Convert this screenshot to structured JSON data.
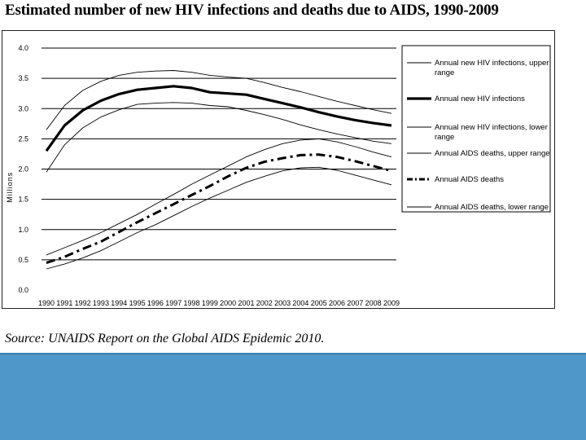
{
  "page": {
    "title": "Estimated number of new HIV infections and deaths due to AIDS, 1990-2009",
    "source": "Source: UNAIDS Report on the Global AIDS Epidemic 2010."
  },
  "chart_data": {
    "type": "line",
    "title": "Estimated number of new HIV infections and deaths due to AIDS, 1990-2009",
    "xlabel": "",
    "ylabel": "Millions",
    "ylim": [
      0,
      4.0
    ],
    "yticks": [
      "0.0",
      "0.5",
      "1.0",
      "1.5",
      "2.0",
      "2.5",
      "3.0",
      "3.5",
      "4.0"
    ],
    "grid": "horizontal",
    "legend_position": "right",
    "categories": [
      "1990",
      "1991",
      "1992",
      "1993",
      "1994",
      "1995",
      "1996",
      "1997",
      "1998",
      "1999",
      "2000",
      "2001",
      "2002",
      "2003",
      "2004",
      "2005",
      "2006",
      "2007",
      "2008",
      "2009"
    ],
    "series": [
      {
        "name": "Annual new HIV infections, upper range",
        "style": "thin",
        "legend_lines": [
          "Annual new HIV infections, upper",
          "range"
        ],
        "values": [
          2.65,
          3.05,
          3.3,
          3.45,
          3.55,
          3.6,
          3.62,
          3.63,
          3.6,
          3.55,
          3.52,
          3.5,
          3.43,
          3.35,
          3.28,
          3.2,
          3.12,
          3.05,
          2.98,
          2.92
        ]
      },
      {
        "name": "Annual new HIV infections",
        "style": "thick",
        "legend_lines": [
          "Annual new HIV infections"
        ],
        "values": [
          2.3,
          2.72,
          2.97,
          3.13,
          3.24,
          3.31,
          3.34,
          3.37,
          3.34,
          3.27,
          3.25,
          3.23,
          3.16,
          3.09,
          3.02,
          2.94,
          2.87,
          2.81,
          2.76,
          2.72
        ]
      },
      {
        "name": "Annual new HIV infections, lower range",
        "style": "thin",
        "legend_lines": [
          "Annual new HIV infections, lower",
          "range"
        ],
        "values": [
          1.95,
          2.4,
          2.68,
          2.86,
          2.98,
          3.07,
          3.09,
          3.1,
          3.09,
          3.05,
          3.03,
          2.97,
          2.9,
          2.82,
          2.73,
          2.65,
          2.58,
          2.52,
          2.46,
          2.42
        ]
      },
      {
        "name": "Annual AIDS deaths, upper range",
        "style": "thin",
        "legend_lines": [
          "Annual AIDS deaths, upper range"
        ],
        "values": [
          0.58,
          0.7,
          0.82,
          0.95,
          1.1,
          1.25,
          1.42,
          1.58,
          1.75,
          1.9,
          2.05,
          2.2,
          2.32,
          2.42,
          2.48,
          2.5,
          2.45,
          2.37,
          2.28,
          2.2
        ]
      },
      {
        "name": "Annual AIDS deaths",
        "style": "dashdot",
        "legend_lines": [
          "Annual AIDS deaths"
        ],
        "values": [
          0.45,
          0.55,
          0.68,
          0.8,
          0.96,
          1.12,
          1.27,
          1.42,
          1.57,
          1.72,
          1.88,
          2.02,
          2.12,
          2.18,
          2.23,
          2.24,
          2.2,
          2.13,
          2.05,
          1.97
        ]
      },
      {
        "name": "Annual AIDS deaths, lower range",
        "style": "thin",
        "legend_lines": [
          "Annual AIDS deaths, lower range"
        ],
        "values": [
          0.35,
          0.43,
          0.53,
          0.65,
          0.8,
          0.95,
          1.08,
          1.23,
          1.38,
          1.52,
          1.65,
          1.78,
          1.88,
          1.97,
          2.02,
          2.03,
          1.98,
          1.9,
          1.82,
          1.74
        ]
      }
    ]
  }
}
